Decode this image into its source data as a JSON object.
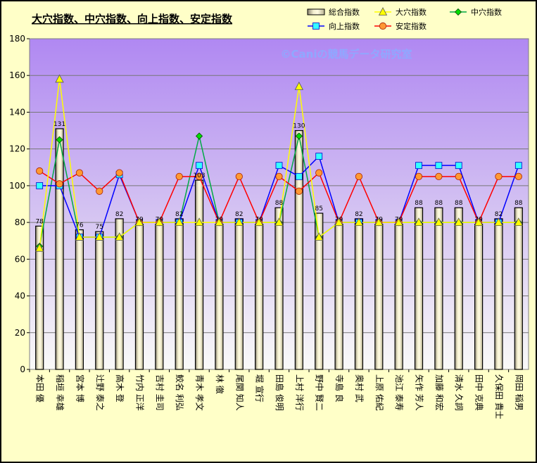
{
  "chart_data": {
    "type": "bar",
    "title": "大穴指数、中穴指数、向上指数、安定指数",
    "watermark": "©Caniの競馬データ研究室",
    "categories": [
      "本田 優",
      "稲垣 幸雄",
      "宮本 博",
      "辻野 泰之",
      "高木 登",
      "竹内 正洋",
      "吉村 圭司",
      "鮫名 利弘",
      "青木 孝文",
      "林 徹",
      "尾関 知人",
      "堀 宣行",
      "田島 俊明",
      "上村 洋行",
      "野中 賢二",
      "寺島 良",
      "奥村 武",
      "上原 佑紀",
      "池江 泰寿",
      "矢作 芳人",
      "加藤 和宏",
      "清水 久詞",
      "田中 克典",
      "久保田 貴士",
      "岡田 稲男"
    ],
    "ylim": [
      0,
      180
    ],
    "yticks": [
      0,
      20,
      40,
      60,
      80,
      100,
      120,
      140,
      160,
      180
    ],
    "series": [
      {
        "name": "総合指数",
        "kind": "bar",
        "color": "#e8e2b0",
        "values": [
          78,
          131,
          76,
          75,
          82,
          79,
          79,
          82,
          103,
          79,
          82,
          79,
          88,
          130,
          85,
          79,
          82,
          79,
          79,
          88,
          88,
          88,
          79,
          82,
          88
        ]
      },
      {
        "name": "大穴指数",
        "kind": "line",
        "color": "#ffff00",
        "values": [
          66,
          158,
          72,
          72,
          72,
          80,
          80,
          80,
          80,
          80,
          80,
          80,
          80,
          154,
          72,
          80,
          80,
          80,
          80,
          80,
          80,
          80,
          80,
          80,
          80
        ]
      },
      {
        "name": "中穴指数",
        "kind": "line",
        "color": "#00aa44",
        "values": [
          67,
          125,
          72,
          72,
          72,
          80,
          80,
          80,
          127,
          80,
          80,
          80,
          80,
          127,
          72,
          80,
          80,
          80,
          80,
          80,
          80,
          80,
          80,
          80,
          80
        ]
      },
      {
        "name": "向上指数",
        "kind": "line",
        "color": "#0000ff",
        "values": [
          100,
          100,
          72,
          72,
          106,
          80,
          80,
          80,
          111,
          80,
          80,
          80,
          111,
          105,
          116,
          80,
          80,
          80,
          80,
          111,
          111,
          111,
          80,
          80,
          111
        ]
      },
      {
        "name": "安定指数",
        "kind": "line",
        "color": "#ff0000",
        "values": [
          108,
          101,
          107,
          97,
          107,
          80,
          80,
          105,
          105,
          80,
          105,
          80,
          105,
          97,
          107,
          80,
          105,
          80,
          80,
          105,
          105,
          105,
          80,
          105,
          105
        ]
      }
    ],
    "data_labels": [
      "78",
      "131",
      "76",
      "75",
      "82",
      "79",
      "79",
      "82",
      "103",
      "79",
      "82",
      "79",
      "88",
      "130",
      "85",
      "79",
      "82",
      "79",
      "79",
      "88",
      "88",
      "88",
      "79",
      "82",
      "88"
    ]
  }
}
